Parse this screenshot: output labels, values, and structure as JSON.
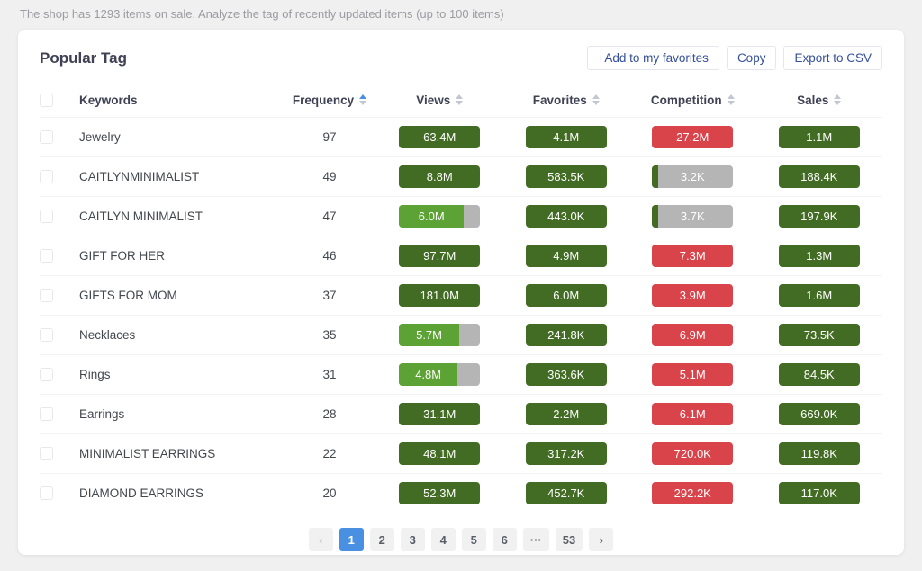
{
  "banner": {
    "text": "The shop has 1293 items on sale. Analyze the tag of recently updated items (up to 100 items)"
  },
  "panel": {
    "title": "Popular Tag"
  },
  "toolbar": {
    "add_favorites_label": "+Add to my favorites",
    "copy_label": "Copy",
    "export_label": "Export to CSV"
  },
  "colors": {
    "green": "#426b23",
    "lightgreen": "#5da234",
    "red": "#d9434a",
    "gray": "#b5b5b5",
    "accent_blue": "#4a90e2",
    "link_blue": "#35509a"
  },
  "table": {
    "columns": [
      {
        "key": "keywords",
        "label": "Keywords",
        "sortable": false,
        "sort": "none"
      },
      {
        "key": "frequency",
        "label": "Frequency",
        "sortable": true,
        "sort": "asc"
      },
      {
        "key": "views",
        "label": "Views",
        "sortable": true,
        "sort": "none"
      },
      {
        "key": "favorites",
        "label": "Favorites",
        "sortable": true,
        "sort": "none"
      },
      {
        "key": "competition",
        "label": "Competition",
        "sortable": true,
        "sort": "none"
      },
      {
        "key": "sales",
        "label": "Sales",
        "sortable": true,
        "sort": "none"
      }
    ],
    "rows": [
      {
        "keyword": "Jewelry",
        "frequency": "97",
        "views": {
          "text": "63.4M",
          "color": "green",
          "fill": 100
        },
        "favorites": {
          "text": "4.1M",
          "color": "green",
          "fill": 100
        },
        "competition": {
          "text": "27.2M",
          "color": "red",
          "fill": 100
        },
        "sales": {
          "text": "1.1M",
          "color": "green",
          "fill": 100
        }
      },
      {
        "keyword": "CAITLYNMINIMALIST",
        "frequency": "49",
        "views": {
          "text": "8.8M",
          "color": "green",
          "fill": 100
        },
        "favorites": {
          "text": "583.5K",
          "color": "green",
          "fill": 100
        },
        "competition": {
          "text": "3.2K",
          "color": "green",
          "fill": 7
        },
        "sales": {
          "text": "188.4K",
          "color": "green",
          "fill": 100
        }
      },
      {
        "keyword": "CAITLYN MINIMALIST",
        "frequency": "47",
        "views": {
          "text": "6.0M",
          "color": "lightgreen",
          "fill": 80
        },
        "favorites": {
          "text": "443.0K",
          "color": "green",
          "fill": 100
        },
        "competition": {
          "text": "3.7K",
          "color": "green",
          "fill": 8
        },
        "sales": {
          "text": "197.9K",
          "color": "green",
          "fill": 100
        }
      },
      {
        "keyword": "GIFT FOR HER",
        "frequency": "46",
        "views": {
          "text": "97.7M",
          "color": "green",
          "fill": 100
        },
        "favorites": {
          "text": "4.9M",
          "color": "green",
          "fill": 100
        },
        "competition": {
          "text": "7.3M",
          "color": "red",
          "fill": 100
        },
        "sales": {
          "text": "1.3M",
          "color": "green",
          "fill": 100
        }
      },
      {
        "keyword": "GIFTS FOR MOM",
        "frequency": "37",
        "views": {
          "text": "181.0M",
          "color": "green",
          "fill": 100
        },
        "favorites": {
          "text": "6.0M",
          "color": "green",
          "fill": 100
        },
        "competition": {
          "text": "3.9M",
          "color": "red",
          "fill": 100
        },
        "sales": {
          "text": "1.6M",
          "color": "green",
          "fill": 100
        }
      },
      {
        "keyword": "Necklaces",
        "frequency": "35",
        "views": {
          "text": "5.7M",
          "color": "lightgreen",
          "fill": 74
        },
        "favorites": {
          "text": "241.8K",
          "color": "green",
          "fill": 100
        },
        "competition": {
          "text": "6.9M",
          "color": "red",
          "fill": 100
        },
        "sales": {
          "text": "73.5K",
          "color": "green",
          "fill": 100
        }
      },
      {
        "keyword": "Rings",
        "frequency": "31",
        "views": {
          "text": "4.8M",
          "color": "lightgreen",
          "fill": 72
        },
        "favorites": {
          "text": "363.6K",
          "color": "green",
          "fill": 100
        },
        "competition": {
          "text": "5.1M",
          "color": "red",
          "fill": 100
        },
        "sales": {
          "text": "84.5K",
          "color": "green",
          "fill": 100
        }
      },
      {
        "keyword": "Earrings",
        "frequency": "28",
        "views": {
          "text": "31.1M",
          "color": "green",
          "fill": 100
        },
        "favorites": {
          "text": "2.2M",
          "color": "green",
          "fill": 100
        },
        "competition": {
          "text": "6.1M",
          "color": "red",
          "fill": 100
        },
        "sales": {
          "text": "669.0K",
          "color": "green",
          "fill": 100
        }
      },
      {
        "keyword": "MINIMALIST EARRINGS",
        "frequency": "22",
        "views": {
          "text": "48.1M",
          "color": "green",
          "fill": 100
        },
        "favorites": {
          "text": "317.2K",
          "color": "green",
          "fill": 100
        },
        "competition": {
          "text": "720.0K",
          "color": "red",
          "fill": 100
        },
        "sales": {
          "text": "119.8K",
          "color": "green",
          "fill": 100
        }
      },
      {
        "keyword": "DIAMOND EARRINGS",
        "frequency": "20",
        "views": {
          "text": "52.3M",
          "color": "green",
          "fill": 100
        },
        "favorites": {
          "text": "452.7K",
          "color": "green",
          "fill": 100
        },
        "competition": {
          "text": "292.2K",
          "color": "red",
          "fill": 100
        },
        "sales": {
          "text": "117.0K",
          "color": "green",
          "fill": 100
        }
      }
    ]
  },
  "pagination": {
    "prev": "‹",
    "next": "›",
    "pages": [
      "1",
      "2",
      "3",
      "4",
      "5",
      "6",
      "···",
      "53"
    ],
    "active": "1"
  }
}
